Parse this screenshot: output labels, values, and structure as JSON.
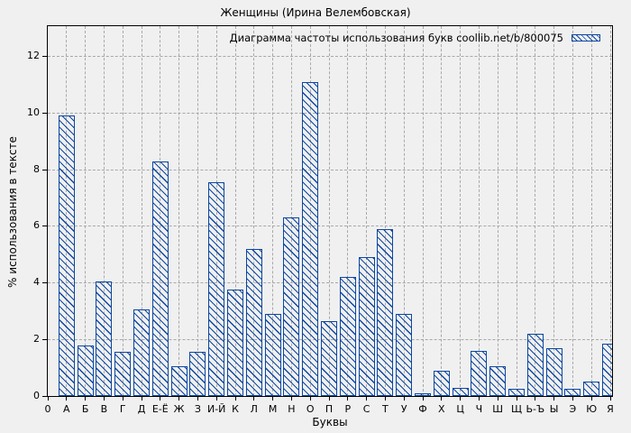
{
  "colors": {
    "bar": "#0d47a1",
    "background": "#f0f0f0",
    "grid": "#a8a8a8",
    "axis": "#000000"
  },
  "chart_data": {
    "type": "bar",
    "title": "Женщины (Ирина Велембовская)",
    "xlabel": "Буквы",
    "ylabel": "% использования в тексте",
    "x_origin_label": "0",
    "categories": [
      "А",
      "Б",
      "В",
      "Г",
      "Д",
      "Е-Ё",
      "Ж",
      "З",
      "И-Й",
      "К",
      "Л",
      "М",
      "Н",
      "О",
      "П",
      "Р",
      "С",
      "Т",
      "У",
      "Ф",
      "Х",
      "Ц",
      "Ч",
      "Ш",
      "Щ",
      "Ь-Ъ",
      "Ы",
      "Э",
      "Ю",
      "Я"
    ],
    "values": [
      9.9,
      1.8,
      4.05,
      1.55,
      3.05,
      8.3,
      1.05,
      1.55,
      7.55,
      3.75,
      5.2,
      2.9,
      6.3,
      11.1,
      2.65,
      4.2,
      4.9,
      5.9,
      2.9,
      0.1,
      0.9,
      0.3,
      1.6,
      1.05,
      0.25,
      2.2,
      1.7,
      0.25,
      0.5,
      1.85
    ],
    "yticks": [
      0,
      2,
      4,
      6,
      8,
      10,
      12
    ],
    "ylim": [
      0,
      13.07
    ],
    "grid": true,
    "legend_label": "Диаграмма частоты использования букв coollib.net/b/800075",
    "legend_position": "top-right-inside",
    "bar_style": "diagonal-hatch"
  }
}
